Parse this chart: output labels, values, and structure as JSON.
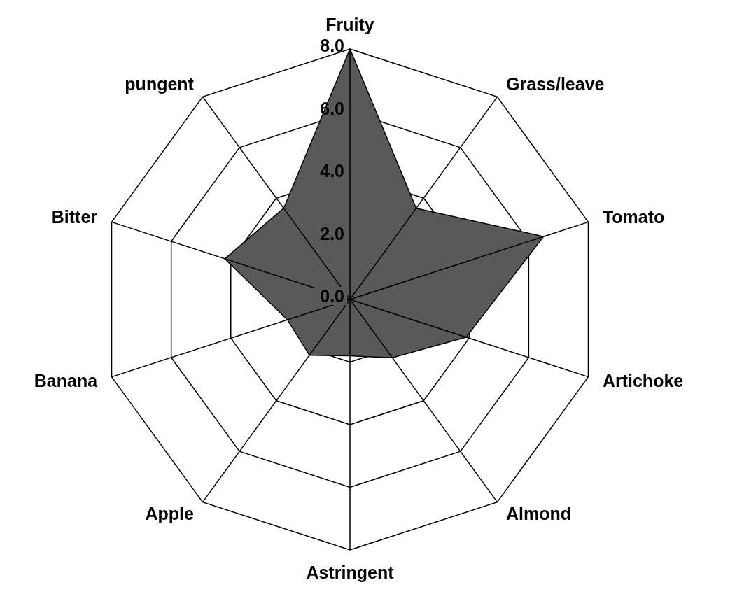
{
  "chart_data": {
    "type": "radar",
    "categories": [
      "Fruity",
      "Grass/leave",
      "Tomato",
      "Artichoke",
      "Almond",
      "Astringent",
      "Apple",
      "Banana",
      "Bitter",
      "pungent"
    ],
    "series": [
      {
        "color": "#595959",
        "values": [
          8.0,
          3.6,
          6.5,
          3.9,
          2.3,
          1.8,
          2.2,
          2.1,
          4.2,
          3.6
        ]
      }
    ],
    "ylim": [
      0,
      8
    ],
    "yticks": [
      {
        "value": 0,
        "label": "0.0"
      },
      {
        "value": 2,
        "label": "2.0"
      },
      {
        "value": 4,
        "label": "4.0"
      },
      {
        "value": 6,
        "label": "6.0"
      },
      {
        "value": 8,
        "label": "8.0"
      }
    ],
    "grid": true
  }
}
